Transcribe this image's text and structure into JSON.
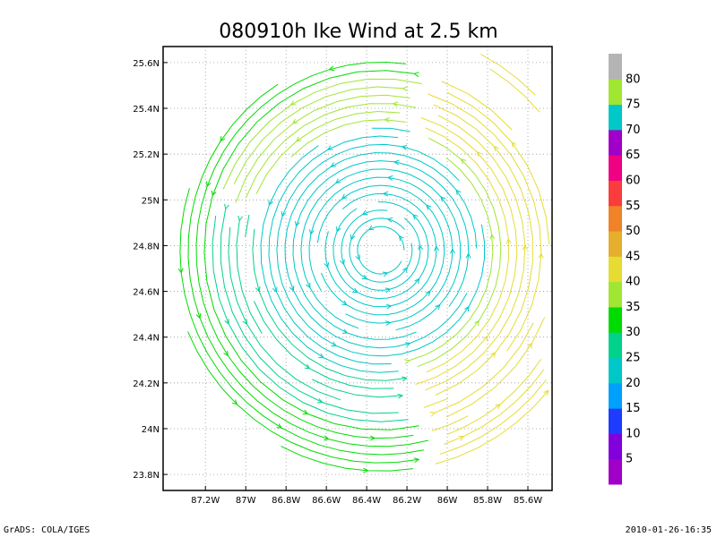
{
  "chart_data": {
    "type": "streamline",
    "title": "080910h Ike Wind at 2.5 km",
    "xlabel": "",
    "ylabel": "",
    "x_axis": {
      "range": [
        -87.41,
        -85.48
      ],
      "ticks": [
        -87.2,
        -87.0,
        -86.8,
        -86.6,
        -86.4,
        -86.2,
        -86.0,
        -85.8,
        -85.6
      ],
      "tick_labels": [
        "87.2W",
        "87W",
        "86.8W",
        "86.6W",
        "86.4W",
        "86.2W",
        "86W",
        "85.8W",
        "85.6W"
      ]
    },
    "y_axis": {
      "range": [
        23.73,
        25.67
      ],
      "ticks": [
        23.8,
        24.0,
        24.2,
        24.4,
        24.6,
        24.8,
        25.0,
        25.2,
        25.4,
        25.6
      ],
      "tick_labels": [
        "23.8N",
        "24N",
        "24.2N",
        "24.4N",
        "24.6N",
        "24.8N",
        "25N",
        "25.2N",
        "25.4N",
        "25.6N"
      ]
    },
    "grid": true,
    "center": {
      "lon": -86.33,
      "lat": 24.78
    },
    "colorbar": {
      "placement": "right",
      "tick_labels": [
        "5",
        "10",
        "15",
        "20",
        "25",
        "30",
        "35",
        "40",
        "45",
        "50",
        "55",
        "60",
        "65",
        "70",
        "75",
        "80"
      ],
      "colors": [
        "#a000c8",
        "#8200dc",
        "#1e3cff",
        "#00a0ff",
        "#00c8c8",
        "#00d28c",
        "#00dc00",
        "#a0e632",
        "#e6dc32",
        "#e6af2d",
        "#f08228",
        "#fa3c3c",
        "#f00082",
        "#a000c8",
        "#00c8c8",
        "#a0e632",
        "#b4b4b4"
      ]
    }
  },
  "footer": {
    "left": "GrADS: COLA/IGES",
    "right": "2010-01-26-16:35"
  }
}
